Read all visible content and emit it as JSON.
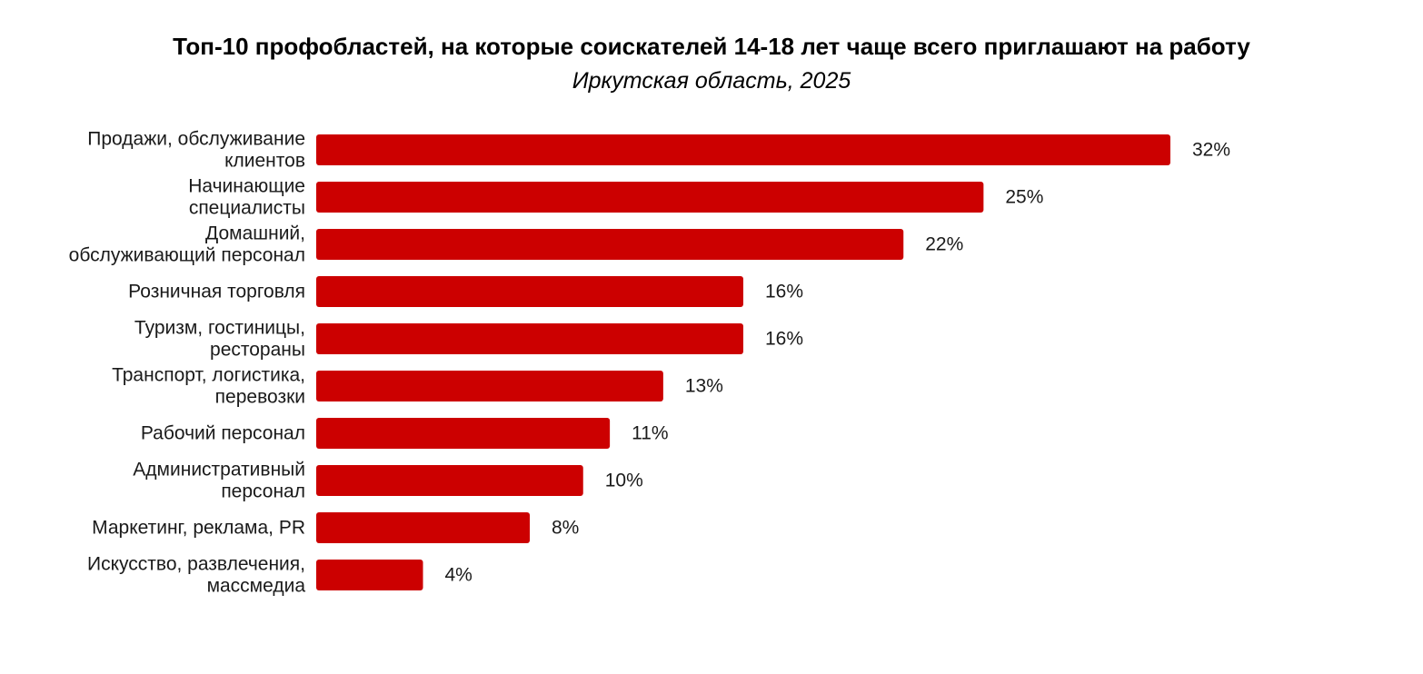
{
  "chart_data": {
    "type": "bar",
    "orientation": "horizontal",
    "title": "Топ-10 профобластей, на которые соискателей 14-18 лет чаще всего приглашают на работу",
    "subtitle": "Иркутская область, 2025",
    "categories": [
      [
        "Продажи, обслуживание",
        "клиентов"
      ],
      [
        "Начинающие",
        "специалисты"
      ],
      [
        "Домашний,",
        "обслуживающий персонал"
      ],
      [
        "Розничная торговля"
      ],
      [
        "Туризм, гостиницы,",
        "рестораны"
      ],
      [
        "Транспорт, логистика,",
        "перевозки"
      ],
      [
        "Рабочий персонал"
      ],
      [
        "Административный",
        "персонал"
      ],
      [
        "Маркетинг, реклама, PR"
      ],
      [
        "Искусство, развлечения,",
        "массмедиа"
      ]
    ],
    "values": [
      32,
      25,
      22,
      16,
      16,
      13,
      11,
      10,
      8,
      4
    ],
    "data_labels": [
      "32%",
      "25%",
      "22%",
      "16%",
      "16%",
      "13%",
      "11%",
      "10%",
      "8%",
      "4%"
    ],
    "xlim": [
      0,
      32
    ],
    "grid": false,
    "legend": "none",
    "bar_color": "#cc0000"
  }
}
